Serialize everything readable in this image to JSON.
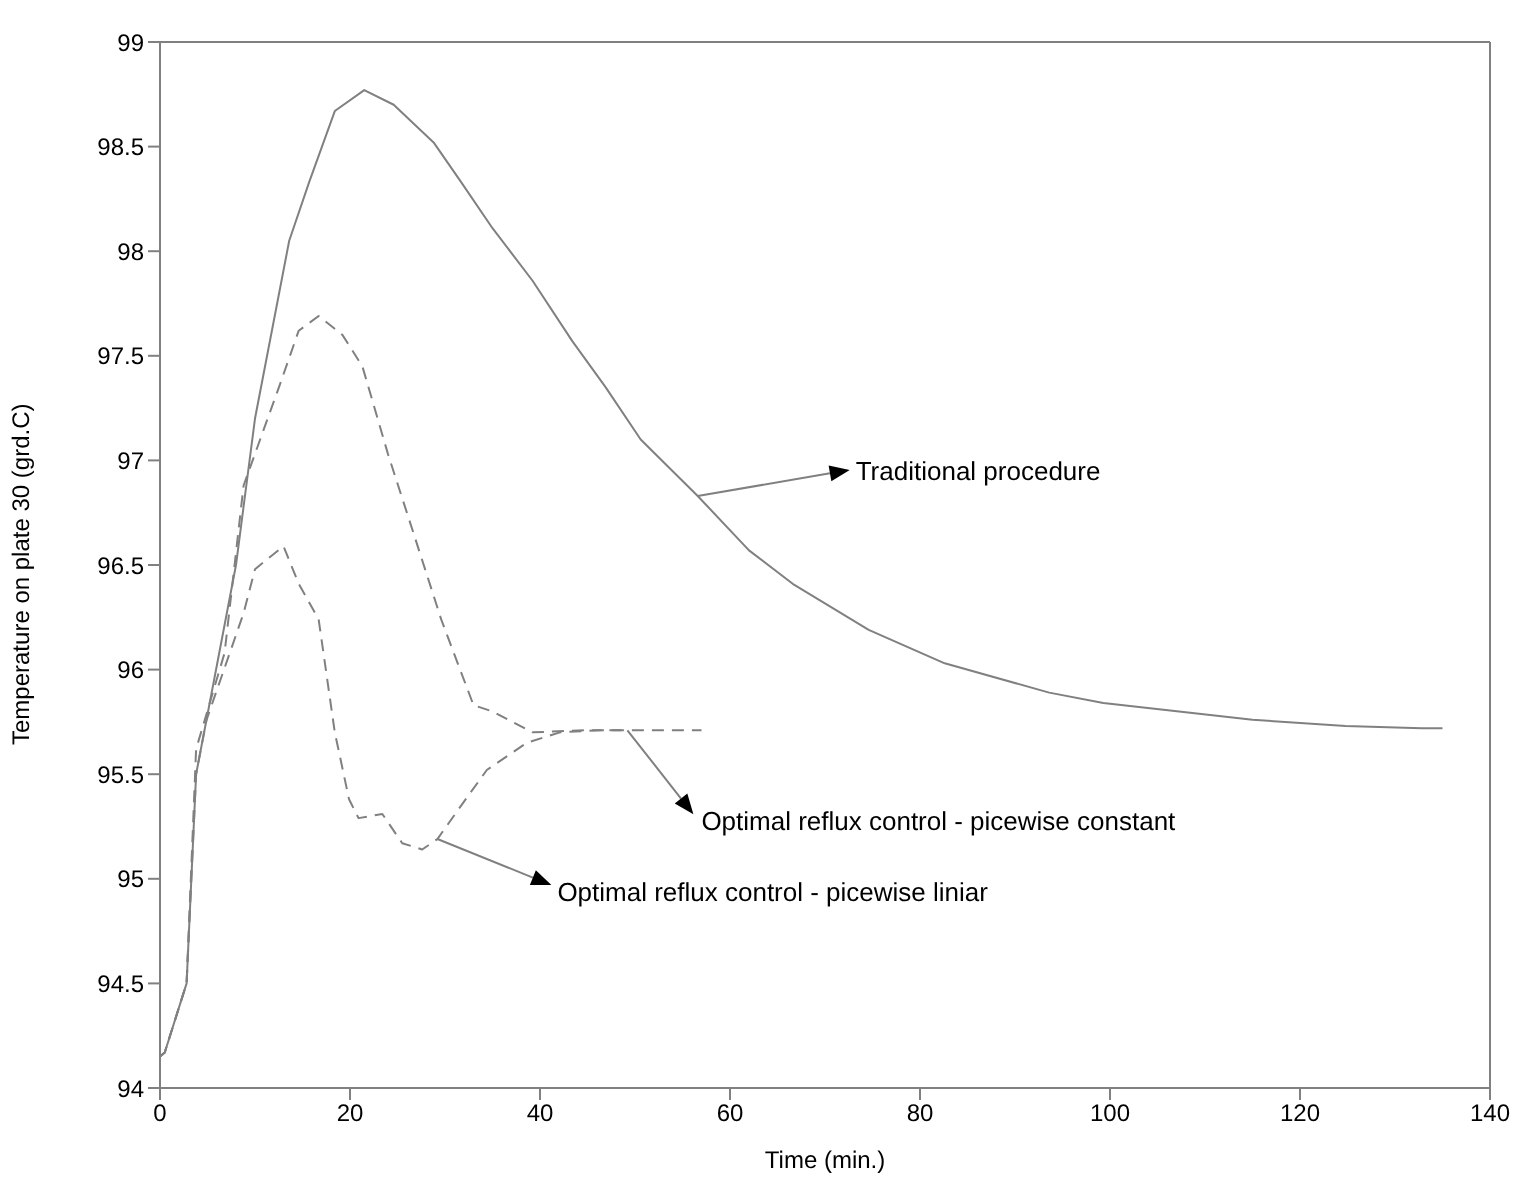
{
  "chart_data": {
    "type": "line",
    "xlabel": "Time (min.)",
    "ylabel": "Temperature on plate 30 (grd.C)",
    "xlim": [
      0,
      140
    ],
    "xticks": [
      0,
      20,
      40,
      60,
      80,
      100,
      120,
      140
    ],
    "ylim": [
      94,
      99
    ],
    "yticks": [
      94,
      94.5,
      95,
      95.5,
      96,
      96.5,
      97,
      97.5,
      98,
      98.5,
      99
    ],
    "grid": false,
    "legend": false,
    "marker": "none",
    "series": [
      {
        "color": "#808080",
        "line_style": "solid",
        "x": [
          0,
          0.5,
          2.8,
          3.8,
          8,
          10,
          13.6,
          15.7,
          18.4,
          21.5,
          24.6,
          28.8,
          31.7,
          35,
          39.2,
          43.4,
          46.9,
          50.6,
          56.6,
          62,
          66.6,
          74.6,
          82.6,
          93.6,
          99.3,
          115,
          124.8,
          132.8,
          135
        ],
        "values": [
          94.15,
          94.17,
          94.5,
          95.5,
          96.5,
          97.2,
          98.05,
          98.33,
          98.67,
          98.77,
          98.7,
          98.52,
          98.33,
          98.11,
          97.86,
          97.57,
          97.35,
          97.1,
          96.83,
          96.57,
          96.41,
          96.19,
          96.03,
          95.89,
          95.84,
          95.76,
          95.73,
          95.72,
          95.72
        ]
      },
      {
        "color": "#808080",
        "line_style": "dashed",
        "x": [
          0,
          0.5,
          2.8,
          3.8,
          6.8,
          8.8,
          12.6,
          14.6,
          16.7,
          19.2,
          21.3,
          24,
          26.7,
          29.6,
          33,
          35,
          39.2,
          44.8,
          57
        ],
        "values": [
          94.15,
          94.17,
          94.5,
          95.62,
          96.08,
          96.88,
          97.36,
          97.62,
          97.69,
          97.6,
          97.45,
          97.03,
          96.65,
          96.24,
          95.83,
          95.8,
          95.7,
          95.71,
          95.71
        ]
      },
      {
        "color": "#808080",
        "line_style": "dashed",
        "x": [
          0,
          0.5,
          2.8,
          3.8,
          4.9,
          8.8,
          10,
          13,
          14.6,
          16.7,
          18.4,
          19.9,
          20.9,
          23.4,
          25.5,
          27.6,
          29.2,
          31.7,
          34.4,
          38.6,
          42.1,
          46.3,
          49
        ],
        "values": [
          94.15,
          94.17,
          94.5,
          95.5,
          95.76,
          96.27,
          96.48,
          96.59,
          96.41,
          96.24,
          95.7,
          95.38,
          95.29,
          95.31,
          95.17,
          95.14,
          95.19,
          95.35,
          95.52,
          95.65,
          95.7,
          95.71,
          95.71
        ]
      }
    ],
    "annotations": [
      {
        "text": "Traditional procedure",
        "x": 56.6,
        "y": 96.83
      },
      {
        "text": "Optimal reflux control - picewise constant",
        "x": 49.2,
        "y": 95.71
      },
      {
        "text": "Optimal reflux control - picewise liniar",
        "x": 29.2,
        "y": 95.19
      }
    ]
  }
}
